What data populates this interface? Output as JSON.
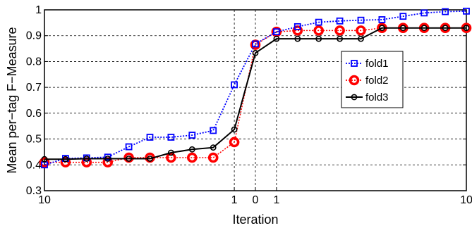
{
  "chart_data": {
    "type": "line",
    "xlabel": "Iteration",
    "ylabel": "Mean per−tag F−Measure",
    "ylim": [
      0.3,
      1.0
    ],
    "yticks": [
      "0.3",
      "0.4",
      "0.5",
      "0.6",
      "0.7",
      "0.8",
      "0.9",
      "1"
    ],
    "x_positions": [
      1,
      2,
      3,
      4,
      5,
      6,
      7,
      8,
      9,
      10,
      11,
      12,
      13,
      14,
      15,
      16,
      17,
      18,
      19,
      20,
      21
    ],
    "xlim": [
      1,
      21
    ],
    "xtick_labels": [
      {
        "pos": 1,
        "label": "10"
      },
      {
        "pos": 10,
        "label": "1"
      },
      {
        "pos": 11,
        "label": "0"
      },
      {
        "pos": 12,
        "label": "1"
      },
      {
        "pos": 21,
        "label": "10"
      }
    ],
    "vgrid_positions": [
      1,
      10,
      11,
      12,
      21
    ],
    "grid": true,
    "legend_position": "center-right",
    "series": [
      {
        "name": "fold1",
        "color": "#0000ff",
        "marker": "square",
        "linestyle": "dotted",
        "values": [
          0.4,
          0.425,
          0.427,
          0.43,
          0.47,
          0.507,
          0.507,
          0.515,
          0.533,
          0.71,
          0.868,
          0.915,
          0.935,
          0.952,
          0.957,
          0.96,
          0.962,
          0.975,
          0.988,
          0.993,
          0.995
        ]
      },
      {
        "name": "fold2",
        "color": "#ff0000",
        "marker": "circle",
        "linestyle": "dotted",
        "values": [
          0.41,
          0.41,
          0.41,
          0.41,
          0.428,
          0.428,
          0.428,
          0.428,
          0.428,
          0.488,
          0.865,
          0.915,
          0.92,
          0.92,
          0.92,
          0.92,
          0.93,
          0.93,
          0.93,
          0.93,
          0.93
        ]
      },
      {
        "name": "fold3",
        "color": "#000000",
        "marker": "circle-small",
        "linestyle": "solid",
        "values": [
          0.422,
          0.422,
          0.424,
          0.424,
          0.424,
          0.424,
          0.447,
          0.46,
          0.467,
          0.537,
          0.833,
          0.888,
          0.888,
          0.888,
          0.888,
          0.888,
          0.93,
          0.93,
          0.93,
          0.93,
          0.93
        ]
      }
    ]
  }
}
